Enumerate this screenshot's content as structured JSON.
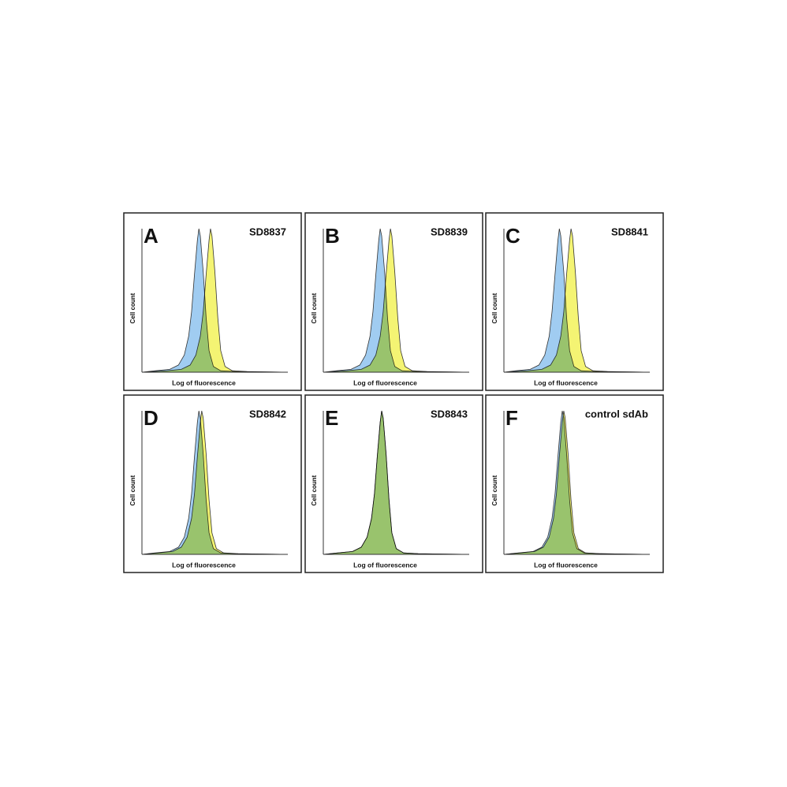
{
  "chart_data": [
    {
      "type": "area",
      "panel": "A",
      "title": "SD8837",
      "xlabel": "Log of fluorescence",
      "ylabel": "Cell count",
      "xlim": [
        0,
        100
      ],
      "ylim": [
        0,
        100
      ],
      "series": [
        {
          "color": "#8fc3ef",
          "x": [
            0,
            9,
            19,
            25,
            29,
            32,
            34,
            36,
            38,
            39,
            40,
            42,
            44,
            46,
            49,
            54,
            64,
            100
          ],
          "values": [
            0,
            1,
            2,
            5,
            12,
            25,
            42,
            68,
            92,
            100,
            95,
            70,
            38,
            15,
            4,
            1,
            0.5,
            0
          ]
        },
        {
          "color": "#f2f25a",
          "x": [
            0,
            17,
            27,
            33,
            37,
            40,
            42,
            44,
            46,
            47,
            48,
            50,
            52,
            54,
            57,
            62,
            72,
            100
          ],
          "values": [
            0,
            1,
            2,
            5,
            12,
            25,
            42,
            68,
            92,
            100,
            95,
            70,
            38,
            15,
            4,
            1,
            0.5,
            0
          ]
        }
      ]
    },
    {
      "type": "area",
      "panel": "B",
      "title": "SD8839",
      "xlabel": "Log of fluorescence",
      "ylabel": "Cell count",
      "xlim": [
        0,
        100
      ],
      "ylim": [
        0,
        100
      ],
      "series": [
        {
          "color": "#8fc3ef",
          "x": [
            0,
            9,
            19,
            25,
            29,
            32,
            34,
            36,
            38,
            39,
            40,
            42,
            44,
            46,
            49,
            54,
            64,
            100
          ],
          "values": [
            0,
            1,
            2,
            5,
            12,
            25,
            42,
            68,
            92,
            100,
            95,
            70,
            38,
            15,
            4,
            1,
            0.5,
            0
          ]
        },
        {
          "color": "#f2f25a",
          "x": [
            0,
            16,
            26,
            32,
            36,
            39,
            41,
            43,
            45,
            46,
            47,
            49,
            51,
            53,
            56,
            61,
            71,
            100
          ],
          "values": [
            0,
            1,
            2,
            5,
            12,
            25,
            42,
            68,
            92,
            100,
            95,
            70,
            38,
            15,
            4,
            1,
            0.5,
            0
          ]
        }
      ]
    },
    {
      "type": "area",
      "panel": "C",
      "title": "SD8841",
      "xlabel": "Log of fluorescence",
      "ylabel": "Cell count",
      "xlim": [
        0,
        100
      ],
      "ylim": [
        0,
        100
      ],
      "series": [
        {
          "color": "#8fc3ef",
          "x": [
            0,
            8,
            18,
            24,
            28,
            31,
            33,
            35,
            37,
            38,
            39,
            41,
            43,
            45,
            48,
            53,
            63,
            100
          ],
          "values": [
            0,
            1,
            2,
            5,
            12,
            25,
            42,
            68,
            92,
            100,
            95,
            70,
            38,
            15,
            4,
            1,
            0.5,
            0
          ]
        },
        {
          "color": "#f2f25a",
          "x": [
            0,
            16,
            26,
            32,
            36,
            39,
            41,
            43,
            45,
            46,
            47,
            49,
            51,
            53,
            56,
            61,
            71,
            100
          ],
          "values": [
            0,
            1,
            2,
            5,
            12,
            25,
            42,
            68,
            92,
            100,
            95,
            70,
            38,
            15,
            4,
            1,
            0.5,
            0
          ]
        }
      ]
    },
    {
      "type": "area",
      "panel": "D",
      "title": "SD8842",
      "xlabel": "Log of fluorescence",
      "ylabel": "Cell count",
      "xlim": [
        0,
        100
      ],
      "ylim": [
        0,
        100
      ],
      "series": [
        {
          "color": "#8fc3ef",
          "x": [
            0,
            9,
            19,
            25,
            29,
            32,
            34,
            36,
            38,
            39,
            40,
            42,
            44,
            46,
            49,
            54,
            64,
            100
          ],
          "values": [
            0,
            1,
            2,
            5,
            12,
            25,
            42,
            68,
            92,
            100,
            95,
            70,
            38,
            15,
            4,
            1,
            0.5,
            0
          ]
        },
        {
          "color": "#f2f25a",
          "x": [
            0,
            11,
            21,
            27,
            31,
            34,
            36,
            38,
            40,
            41,
            42,
            44,
            46,
            48,
            51,
            56,
            66,
            100
          ],
          "values": [
            0,
            1,
            2,
            5,
            12,
            25,
            42,
            68,
            92,
            100,
            95,
            70,
            38,
            15,
            4,
            1,
            0.5,
            0
          ]
        }
      ]
    },
    {
      "type": "area",
      "panel": "E",
      "title": "SD8843",
      "xlabel": "Log of fluorescence",
      "ylabel": "Cell count",
      "xlim": [
        0,
        100
      ],
      "ylim": [
        0,
        100
      ],
      "series": [
        {
          "color": "#8fc3ef",
          "x": [
            0,
            10,
            20,
            26,
            30,
            33,
            35,
            37,
            39,
            40,
            41,
            43,
            45,
            47,
            50,
            55,
            65,
            100
          ],
          "values": [
            0,
            1,
            2,
            5,
            12,
            25,
            42,
            68,
            92,
            100,
            95,
            70,
            38,
            15,
            4,
            1,
            0.5,
            0
          ]
        },
        {
          "color": "#f2f25a",
          "x": [
            0,
            10,
            20,
            26,
            30,
            33,
            35,
            37,
            39,
            40,
            41,
            43,
            45,
            47,
            50,
            55,
            65,
            100
          ],
          "values": [
            0,
            1,
            2,
            5,
            12,
            25,
            42,
            68,
            92,
            100,
            95,
            70,
            38,
            15,
            4,
            1,
            0.5,
            0
          ]
        }
      ]
    },
    {
      "type": "area",
      "panel": "F",
      "title": "control sdAb",
      "xlabel": "Log of fluorescence",
      "ylabel": "Cell count",
      "xlim": [
        0,
        100
      ],
      "ylim": [
        0,
        100
      ],
      "series": [
        {
          "color": "#8fc3ef",
          "x": [
            0,
            10,
            20,
            26,
            30,
            33,
            35,
            37,
            39,
            40,
            41,
            43,
            45,
            47,
            50,
            55,
            65,
            100
          ],
          "values": [
            0,
            1,
            2,
            5,
            12,
            25,
            42,
            68,
            92,
            100,
            95,
            70,
            38,
            15,
            4,
            1,
            0.5,
            0
          ]
        },
        {
          "color": "#f2f25a",
          "x": [
            0,
            11,
            21,
            27,
            31,
            34,
            36,
            38,
            40,
            41,
            42,
            44,
            46,
            48,
            51,
            56,
            66,
            100
          ],
          "values": [
            0,
            1,
            2,
            5,
            12,
            25,
            42,
            68,
            92,
            100,
            95,
            70,
            38,
            15,
            4,
            1,
            0.5,
            0
          ]
        }
      ]
    }
  ]
}
